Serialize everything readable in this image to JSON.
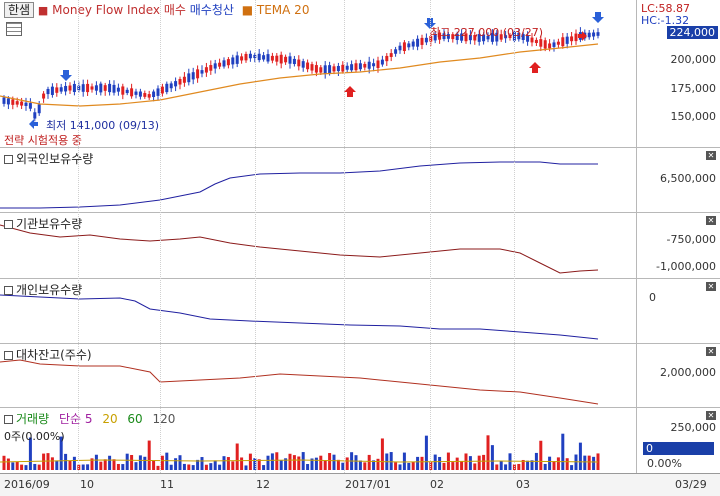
{
  "toolbar": {
    "chip_label": "한샘",
    "indicator_label": "Money Flow Index 매수",
    "sell_label": "매수청산",
    "tema_label": "TEMA 20"
  },
  "price_pane": {
    "lc_label": "LC:58.87",
    "hc_label": "HC:-1.32",
    "current_price": "224,000",
    "axis_labels": [
      "200,000",
      "175,000",
      "150,000"
    ],
    "high_annotation": "최고 227,000 (03/27)",
    "low_annotation": "최저 141,000 (09/13)",
    "strategy_label": "전략 시험적용 중"
  },
  "panes": [
    {
      "title": "외국인보유수량",
      "axis_labels": [
        "6,500,000"
      ]
    },
    {
      "title": "기관보유수량",
      "axis_labels": [
        "-750,000",
        "-1,000,000"
      ]
    },
    {
      "title": "개인보유수량",
      "axis_labels": [
        "0"
      ]
    },
    {
      "title": "대차잔고(주수)",
      "axis_labels": [
        "2,000,000"
      ]
    }
  ],
  "volume_pane": {
    "title": "거래량",
    "ma_labels": [
      "단순 5",
      "20",
      "60",
      "120"
    ],
    "info_label": "0주(0.00%)",
    "axis_labels": [
      "250,000",
      "0",
      "0.00%"
    ],
    "current_value": "0"
  },
  "x_axis": {
    "labels": [
      "2016/09",
      "10",
      "11",
      "12",
      "2017/01",
      "02",
      "03",
      "03/29"
    ]
  },
  "colors": {
    "up": "#e02020",
    "down": "#2040c0",
    "tema": "#e08a20",
    "foreign": "#2020a0",
    "inst": "#8b1a1a",
    "retail": "#2020a0",
    "lending": "#b03020",
    "badge": "#1a3fa8"
  }
}
